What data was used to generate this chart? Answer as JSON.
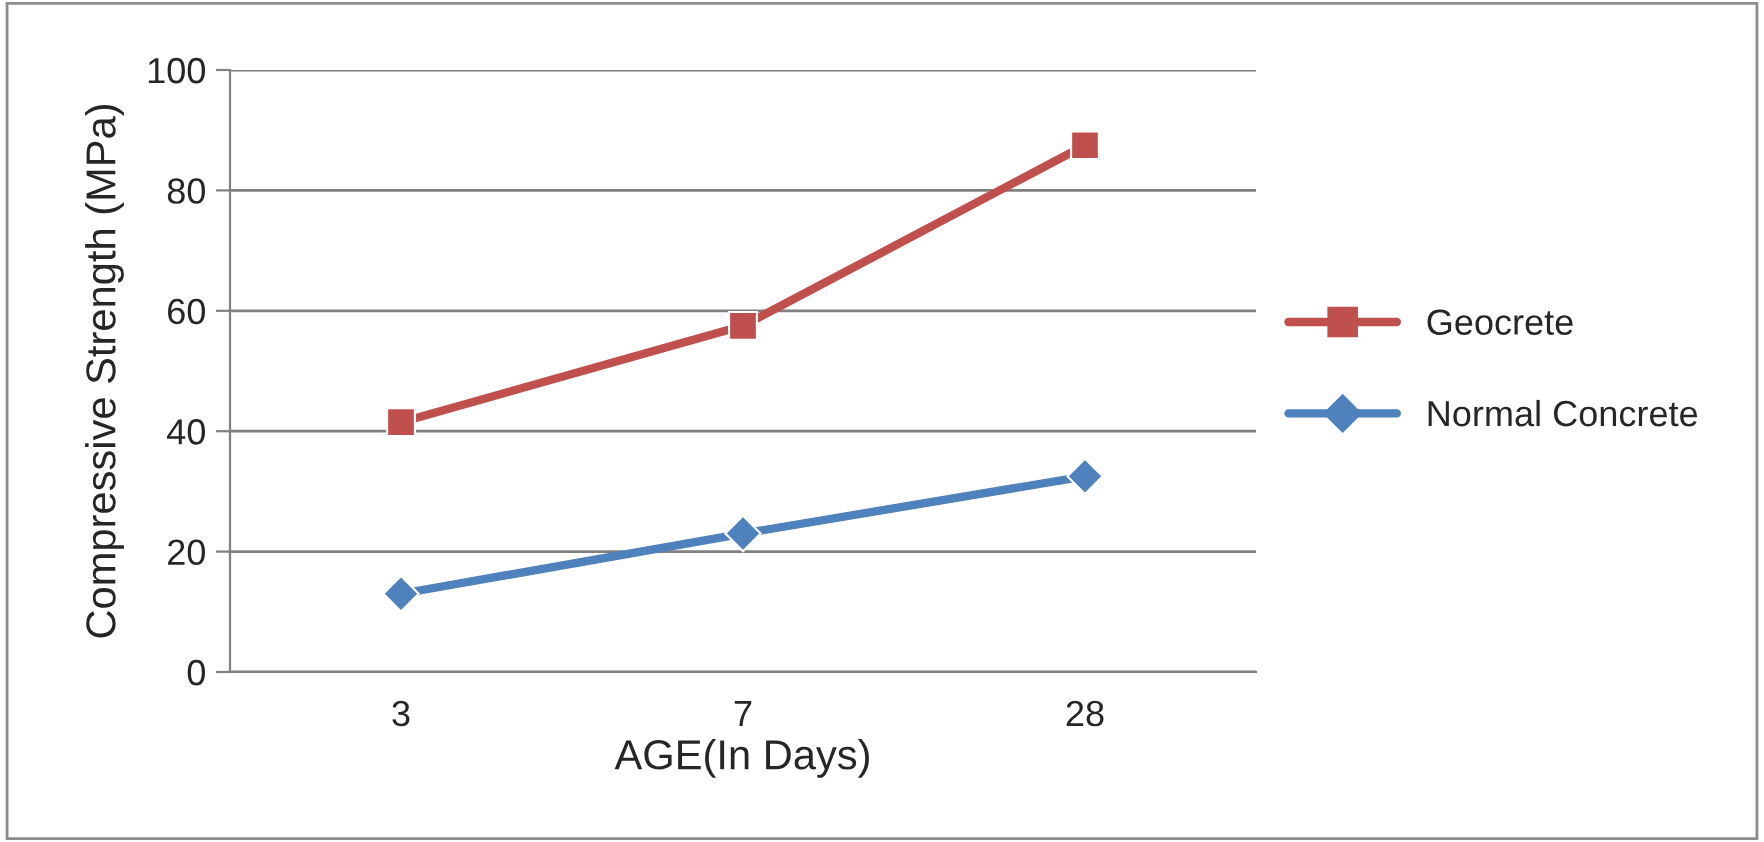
{
  "chart_data": {
    "type": "line",
    "xlabel": "AGE(In Days)",
    "ylabel": "Compressive Strength (MPa)",
    "categories": [
      "3",
      "7",
      "28"
    ],
    "series": [
      {
        "name": "Geocrete",
        "color": "#c0504d",
        "values": [
          41.5,
          57.5,
          87.5
        ],
        "marker": "square"
      },
      {
        "name": "Normal Concrete",
        "color": "#4f81bd",
        "values": [
          13,
          23,
          32.5
        ],
        "marker": "diamond"
      }
    ],
    "ylim": [
      0,
      100
    ],
    "yticks": [
      0,
      20,
      40,
      60,
      80,
      100
    ],
    "grid": "y",
    "legend": "right",
    "line_style": "solid"
  }
}
